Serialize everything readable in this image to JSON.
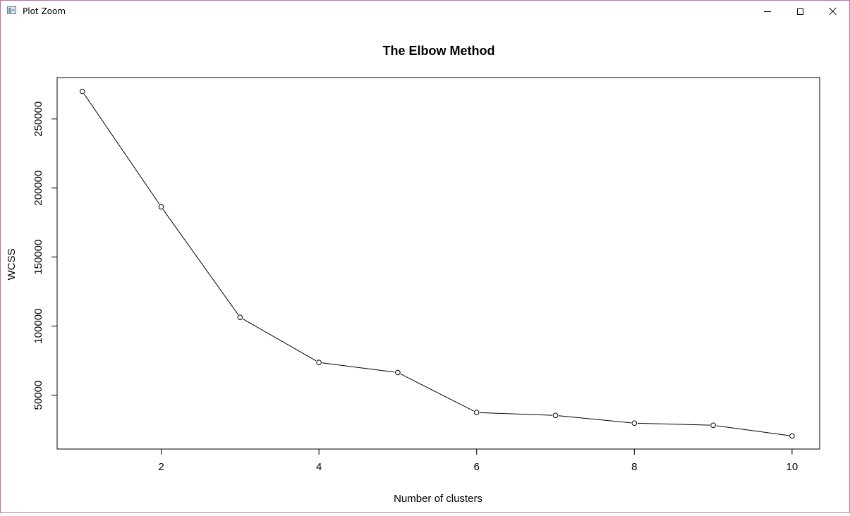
{
  "window": {
    "title": "Plot Zoom",
    "icon": "plot-window-icon",
    "minimize_icon": "minimize-icon",
    "maximize_icon": "maximize-icon",
    "close_icon": "close-icon"
  },
  "chart_data": {
    "type": "line",
    "title": "The Elbow Method",
    "xlabel": "Number of clusters",
    "ylabel": "WCSS",
    "x": [
      1,
      2,
      3,
      4,
      5,
      6,
      7,
      8,
      9,
      10
    ],
    "values": [
      269981,
      186362,
      106348,
      73679,
      66414,
      37455,
      35368,
      29737,
      28210,
      20466
    ],
    "xlim": [
      0.68,
      10.35
    ],
    "ylim": [
      11000,
      280000
    ],
    "x_ticks": [
      2,
      4,
      6,
      8,
      10
    ],
    "x_tick_labels": [
      "2",
      "4",
      "6",
      "8",
      "10"
    ],
    "y_ticks": [
      50000,
      100000,
      150000,
      200000,
      250000
    ],
    "y_tick_labels": [
      "50000",
      "100000",
      "150000",
      "200000",
      "250000"
    ],
    "markers": "open-circle",
    "line_color": "#000000",
    "grid": false,
    "legend": "none"
  }
}
